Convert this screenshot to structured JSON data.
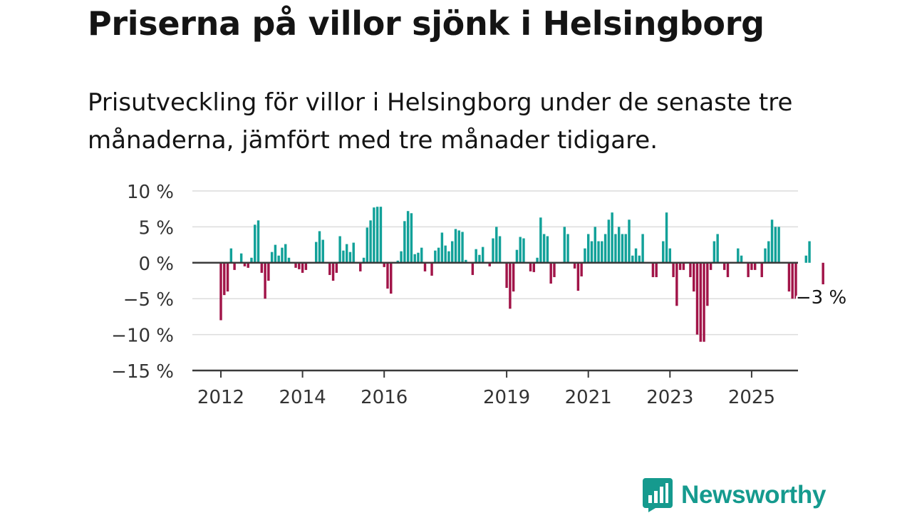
{
  "header": {
    "title": "Priserna på villor sjönk i Helsingborg",
    "subtitle": "Prisutveckling för villor i Helsingborg under de senaste tre månaderna, jämfört med tre månader tidigare."
  },
  "brand": {
    "name": "Newsworthy",
    "icon": "newsworthy-logo-icon",
    "color": "#159a8e"
  },
  "chart_data": {
    "type": "bar",
    "ylim": [
      -15,
      10
    ],
    "yticks": [
      10,
      5,
      0,
      -5,
      -10,
      -15
    ],
    "ytick_labels": [
      "10 %",
      "5 %",
      "0 %",
      "−5 %",
      "−10 %",
      "−15 %"
    ],
    "xticks": [
      2012,
      2014,
      2016,
      2019,
      2021,
      2023,
      2025
    ],
    "grid": true,
    "colors": {
      "positive": "#12a199",
      "negative": "#a11448"
    },
    "x_start": "2012-01",
    "x_step": "month",
    "annotation": {
      "text": "−3 %",
      "value": -3
    },
    "values": [
      -8,
      -4.5,
      -4,
      2,
      -1,
      0,
      1.3,
      -0.5,
      -0.7,
      0.7,
      5.3,
      5.9,
      -1.4,
      -5,
      -2.5,
      1.5,
      2.5,
      1,
      2.1,
      2.6,
      0.7,
      0,
      -0.7,
      -0.9,
      -1.4,
      -1,
      0,
      0,
      2.9,
      4.4,
      3.2,
      0,
      -1.7,
      -2.5,
      -1.4,
      3.7,
      1.7,
      2.6,
      1.5,
      2.8,
      0,
      -1.2,
      0.7,
      4.9,
      5.9,
      7.7,
      7.8,
      7.8,
      -0.6,
      -3.6,
      -4.3,
      0,
      0.3,
      1.6,
      5.8,
      7.2,
      6.9,
      1.2,
      1.4,
      2.1,
      -1.2,
      0,
      -1.8,
      1.7,
      2.1,
      4.2,
      2.4,
      1.6,
      3,
      4.7,
      4.5,
      4.3,
      0.4,
      0,
      -1.7,
      1.9,
      1.1,
      2.2,
      0,
      -0.5,
      3.4,
      5,
      3.7,
      0,
      -3.5,
      -6.4,
      -4,
      1.8,
      3.6,
      3.4,
      0,
      -1.2,
      -1.3,
      0.7,
      6.3,
      4,
      3.7,
      -2.9,
      -2,
      0,
      0,
      5,
      4,
      0,
      -0.8,
      -3.9,
      -1.9,
      2,
      4,
      3,
      5,
      3,
      3,
      4,
      6,
      7,
      4,
      5,
      4,
      4,
      6,
      1,
      2,
      1,
      4,
      0,
      0,
      -2,
      -2,
      0,
      3,
      7,
      2,
      -2,
      -6,
      -1,
      -1,
      0,
      -2,
      -4,
      -10,
      -11,
      -11,
      -6,
      -1,
      3,
      4,
      0,
      -1,
      -2,
      0,
      0,
      2,
      1,
      0,
      -2,
      -1,
      -1,
      0,
      -2,
      2,
      3,
      6,
      5,
      5,
      0,
      0,
      -4,
      -5,
      -5,
      0,
      0,
      1,
      3,
      0,
      0,
      0,
      -3
    ]
  }
}
